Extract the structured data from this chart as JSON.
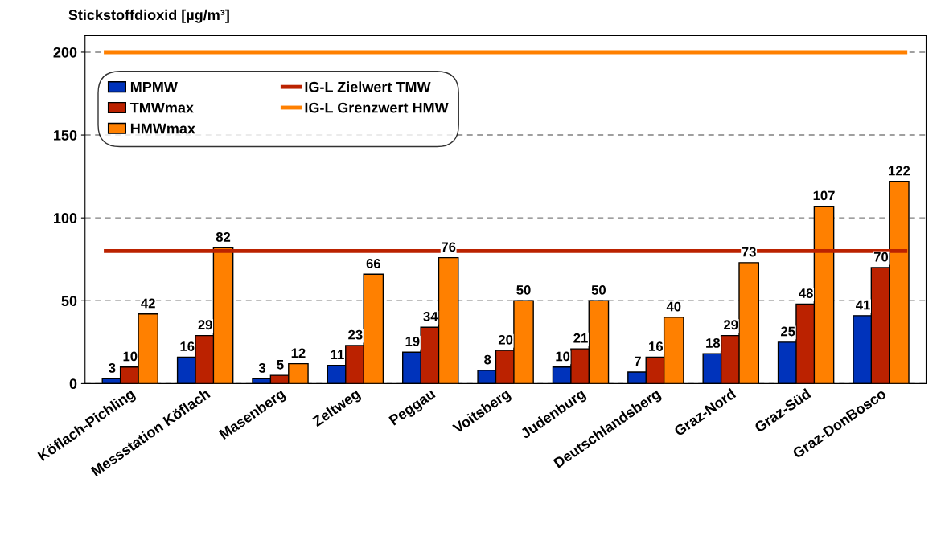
{
  "chart_data": {
    "type": "bar",
    "title": "Stickstoffdioxid [µg/m³]",
    "categories": [
      "Köflach-Pichling",
      "Messstation Köflach",
      "Masenberg",
      "Zeltweg",
      "Peggau",
      "Voitsberg",
      "Judenburg",
      "Deutschlandsberg",
      "Graz-Nord",
      "Graz-Süd",
      "Graz-DonBosco"
    ],
    "series": [
      {
        "name": "MPMW",
        "color": "#0033bb",
        "values": [
          3,
          16,
          3,
          11,
          19,
          8,
          10,
          7,
          18,
          25,
          41
        ]
      },
      {
        "name": "TMWmax",
        "color": "#bb2200",
        "values": [
          10,
          29,
          5,
          23,
          34,
          20,
          21,
          16,
          29,
          48,
          70
        ]
      },
      {
        "name": "HMWmax",
        "color": "#ff8000",
        "values": [
          42,
          82,
          12,
          66,
          76,
          50,
          50,
          40,
          73,
          107,
          122
        ]
      }
    ],
    "ref_lines": [
      {
        "axis": "y",
        "value": 80,
        "label": "IG-L Zielwert TMW",
        "color": "#bb2200"
      },
      {
        "axis": "y",
        "value": 200,
        "label": "IG-L Grenzwert HMW",
        "color": "#ff8000"
      }
    ],
    "ylim": [
      0,
      210
    ],
    "yticks": [
      0,
      50,
      100,
      150,
      200
    ],
    "grid": "y",
    "legend": "top left",
    "data_labels": true
  }
}
